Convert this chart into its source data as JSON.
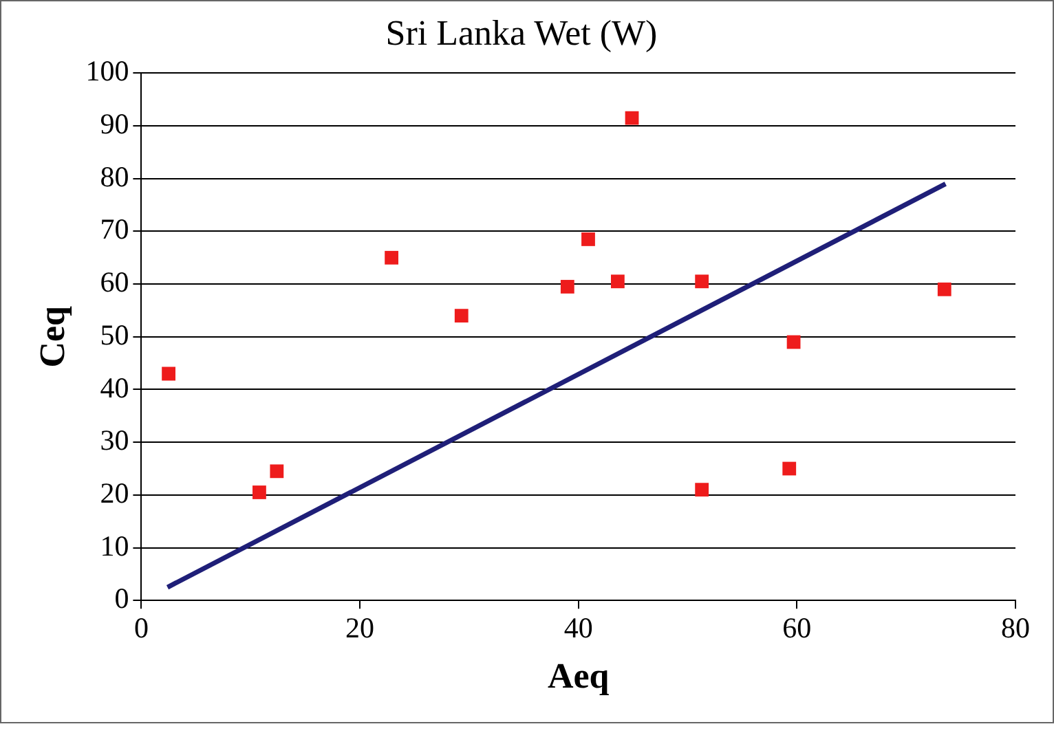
{
  "chart_data": {
    "type": "scatter",
    "title": "Sri Lanka Wet (W)",
    "xlabel": "Aeq",
    "ylabel": "Ceq",
    "xlim": [
      0,
      80
    ],
    "xticks": [
      0,
      20,
      40,
      60,
      80
    ],
    "ylim": [
      0,
      100
    ],
    "yticks": [
      0,
      10,
      20,
      30,
      40,
      50,
      60,
      70,
      80,
      90,
      100
    ],
    "grid": "y",
    "legend": false,
    "series": [
      {
        "color": "#ee1c1c",
        "marker": "square",
        "x": [
          2.5,
          10.8,
          12.4,
          22.9,
          29.3,
          39.0,
          40.9,
          43.6,
          44.9,
          51.3,
          51.3,
          59.7,
          59.3,
          73.5
        ],
        "values": [
          43,
          20.5,
          24.5,
          65,
          54,
          59.5,
          68.5,
          60.5,
          91.5,
          60.5,
          21,
          49,
          25,
          59
        ]
      },
      {
        "type": "line",
        "color": "#1f1f78",
        "marker": "none",
        "x": [
          2.4,
          73.6
        ],
        "values": [
          2.5,
          79
        ]
      }
    ]
  }
}
